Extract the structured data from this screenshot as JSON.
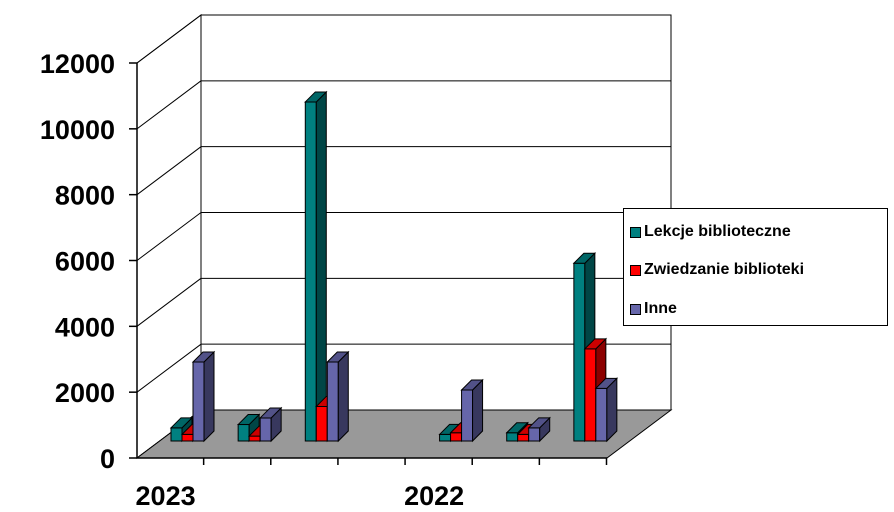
{
  "chart_data": {
    "type": "bar",
    "style": "3d-clustered-columns",
    "categories": [
      "2023",
      "",
      "",
      "",
      "2022",
      "",
      ""
    ],
    "series": [
      {
        "name": "Lekcje biblioteczne",
        "color": "#008080",
        "values": [
          400,
          500,
          10300,
          0,
          200,
          250,
          5400
        ]
      },
      {
        "name": "Zwiedzanie biblioteki",
        "color": "#ff0000",
        "values": [
          200,
          150,
          1050,
          0,
          250,
          200,
          2800
        ]
      },
      {
        "name": "Inne",
        "color": "#6666aa",
        "values": [
          2400,
          700,
          2400,
          0,
          1550,
          400,
          1600
        ]
      }
    ],
    "yticks": [
      0,
      2000,
      4000,
      6000,
      8000,
      10000,
      12000
    ],
    "ylim": [
      0,
      12000
    ],
    "grid": true,
    "legend": "right"
  }
}
